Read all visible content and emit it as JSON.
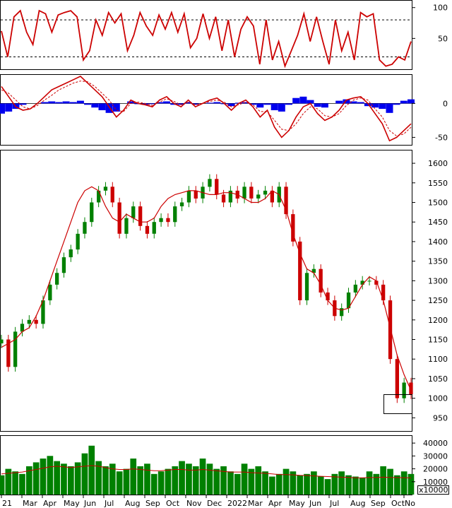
{
  "chart_data": [
    {
      "type": "line",
      "panel": "rsi",
      "ylim": [
        0,
        110
      ],
      "y_ticks": [
        "100",
        "50"
      ],
      "reference_lines": [
        80,
        20
      ],
      "series": [
        {
          "color": "#cc0000",
          "values": [
            62,
            20,
            85,
            95,
            60,
            40,
            95,
            90,
            60,
            88,
            92,
            95,
            85,
            15,
            30,
            80,
            55,
            92,
            75,
            90,
            30,
            55,
            92,
            70,
            55,
            88,
            65,
            92,
            60,
            90,
            35,
            50,
            90,
            50,
            85,
            30,
            80,
            20,
            65,
            85,
            70,
            8,
            80,
            15,
            45,
            5,
            30,
            55,
            90,
            45,
            85,
            45,
            8,
            80,
            30,
            60,
            15,
            92,
            85,
            90,
            15,
            5,
            8,
            20,
            15,
            45
          ]
        }
      ],
      "grid": false
    },
    {
      "type": "line",
      "panel": "macd",
      "ylim": [
        -60,
        40
      ],
      "y_ticks": [
        "0",
        "-50"
      ],
      "series": [
        {
          "color": "#cc0000",
          "values": [
            25,
            10,
            -5,
            -10,
            -8,
            0,
            10,
            20,
            25,
            30,
            35,
            40,
            30,
            20,
            10,
            -5,
            -20,
            -10,
            5,
            0,
            -2,
            -5,
            5,
            10,
            0,
            -5,
            5,
            -5,
            0,
            5,
            8,
            0,
            -10,
            0,
            5,
            -5,
            -20,
            -10,
            -35,
            -50,
            -40,
            -20,
            -5,
            0,
            -15,
            -25,
            -20,
            -10,
            5,
            8,
            10,
            0,
            -15,
            -30,
            -55,
            -50,
            -40,
            -30
          ]
        },
        {
          "color": "#cc0000",
          "values": [
            20,
            15,
            5,
            -5,
            -8,
            -3,
            5,
            12,
            20,
            25,
            30,
            33,
            32,
            25,
            15,
            5,
            -10,
            -12,
            0,
            2,
            0,
            -3,
            2,
            7,
            3,
            -2,
            2,
            -2,
            0,
            3,
            5,
            2,
            -5,
            -2,
            2,
            -2,
            -12,
            -12,
            -25,
            -38,
            -40,
            -30,
            -15,
            -5,
            -8,
            -18,
            -20,
            -15,
            -3,
            5,
            8,
            5,
            -8,
            -20,
            -40,
            -48,
            -45,
            -35
          ]
        },
        {
          "color": "#0000ee",
          "values": [
            -15,
            -12,
            -8,
            -2,
            0,
            0,
            2,
            3,
            2,
            3,
            2,
            4,
            -2,
            -6,
            -10,
            -14,
            -12,
            0,
            3,
            -1,
            -2,
            -1,
            2,
            3,
            -2,
            -2,
            2,
            -2,
            0,
            1,
            2,
            -1,
            -4,
            1,
            2,
            -2,
            -6,
            -2,
            -10,
            -12,
            -2,
            8,
            10,
            5,
            -5,
            -6,
            0,
            4,
            6,
            3,
            2,
            -4,
            -6,
            -8,
            -14,
            -2,
            4,
            6
          ]
        }
      ],
      "grid": false
    },
    {
      "type": "candlestick",
      "panel": "price",
      "ylim": [
        920,
        1620
      ],
      "y_ticks": [
        "1600",
        "1550",
        "1500",
        "1450",
        "1400",
        "1350",
        "1300",
        "1250",
        "1200",
        "1150",
        "1100",
        "1050",
        "1000",
        "950"
      ],
      "series": [
        {
          "color": "#cc0000",
          "values": [
            1130,
            1140,
            1150,
            1170,
            1180,
            1210,
            1250,
            1300,
            1350,
            1400,
            1450,
            1500,
            1530,
            1540,
            1530,
            1490,
            1460,
            1450,
            1470,
            1460,
            1450,
            1450,
            1460,
            1490,
            1510,
            1520,
            1525,
            1530,
            1530,
            1525,
            1520,
            1520,
            1525,
            1525,
            1520,
            1510,
            1500,
            1500,
            1510,
            1530,
            1520,
            1480,
            1420,
            1370,
            1330,
            1320,
            1290,
            1250,
            1230,
            1225,
            1230,
            1260,
            1290,
            1310,
            1300,
            1250,
            1180,
            1110,
            1060,
            1020
          ]
        }
      ],
      "close_values": [
        1150,
        1080,
        1170,
        1190,
        1200,
        1190,
        1250,
        1290,
        1320,
        1360,
        1380,
        1420,
        1450,
        1500,
        1530,
        1540,
        1500,
        1420,
        1460,
        1490,
        1440,
        1420,
        1450,
        1460,
        1450,
        1490,
        1500,
        1530,
        1510,
        1540,
        1560,
        1520,
        1500,
        1530,
        1510,
        1540,
        1510,
        1520,
        1530,
        1500,
        1540,
        1470,
        1400,
        1250,
        1320,
        1330,
        1270,
        1250,
        1210,
        1230,
        1270,
        1290,
        1300,
        1300,
        1290,
        1250,
        1100,
        1000,
        1040,
        1010
      ],
      "grid": false
    },
    {
      "type": "bar",
      "panel": "volume",
      "ylim": [
        0,
        45000
      ],
      "y_ticks": [
        "40000",
        "30000",
        "20000",
        "10000"
      ],
      "unit_label": "x10000",
      "values": [
        15000,
        20000,
        18000,
        16000,
        22000,
        25000,
        28000,
        30000,
        26000,
        24000,
        22000,
        25000,
        32000,
        38000,
        26000,
        22000,
        24000,
        18000,
        20000,
        28000,
        22000,
        24000,
        16000,
        18000,
        20000,
        22000,
        26000,
        24000,
        22000,
        28000,
        24000,
        20000,
        22000,
        18000,
        16000,
        24000,
        20000,
        22000,
        18000,
        14000,
        16000,
        20000,
        18000,
        15000,
        16000,
        18000,
        14000,
        12000,
        16000,
        18000,
        15000,
        14000,
        13000,
        18000,
        16000,
        22000,
        20000,
        15000,
        18000,
        16000
      ],
      "moving_average": [
        16000,
        16500,
        17000,
        17500,
        18500,
        19500,
        20500,
        21500,
        22000,
        21500,
        21000,
        21500,
        22000,
        22500,
        22000,
        21000,
        20000,
        19500,
        19500,
        20000,
        19500,
        19000,
        18500,
        18500,
        19000,
        19500,
        19500,
        19000,
        19000,
        19500,
        19000,
        18500,
        18000,
        17500,
        17500,
        17500,
        17000,
        16800,
        16500,
        16000,
        15500,
        15500,
        15300,
        15000,
        14800,
        14500,
        14200,
        14000,
        13800,
        13500,
        13300,
        13000,
        13000,
        13200,
        13300,
        13500,
        13300,
        13200,
        13100,
        13000
      ],
      "bar_color": "#008000",
      "grid": false
    }
  ],
  "x_axis": {
    "months": [
      "21",
      "Mar",
      "Apr",
      "May",
      "Jun",
      "Jul",
      "Aug",
      "Sep",
      "Oct",
      "Nov",
      "Dec",
      "2022",
      "Mar",
      "Apr",
      "May",
      "Jun",
      "Jul",
      "Aug",
      "Sep",
      "Oct",
      "No"
    ]
  },
  "colors": {
    "up": "#008000",
    "down": "#cc0000",
    "ma": "#cc0000",
    "macd_hist": "#0000ee"
  }
}
